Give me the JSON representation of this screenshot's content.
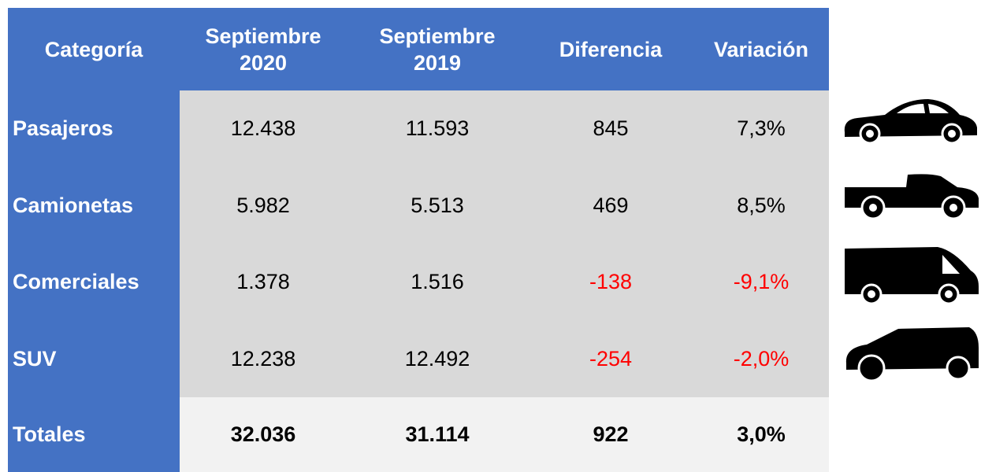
{
  "table": {
    "header": [
      "Categoría",
      "Septiembre 2020",
      "Septiembre 2019",
      "Diferencia",
      "Variación"
    ],
    "rows": [
      [
        "Pasajeros",
        "12.438",
        "11.593",
        "845",
        "7,3%"
      ],
      [
        "Camionetas",
        "5.982",
        "5.513",
        "469",
        "8,5%"
      ],
      [
        "Comerciales",
        "1.378",
        "1.516",
        "-138",
        "-9,1%"
      ],
      [
        "SUV",
        "12.238",
        "12.492",
        "-254",
        "-2,0%"
      ]
    ],
    "totals": [
      "Totales",
      "32.036",
      "31.114",
      "922",
      "3,0%"
    ]
  }
}
